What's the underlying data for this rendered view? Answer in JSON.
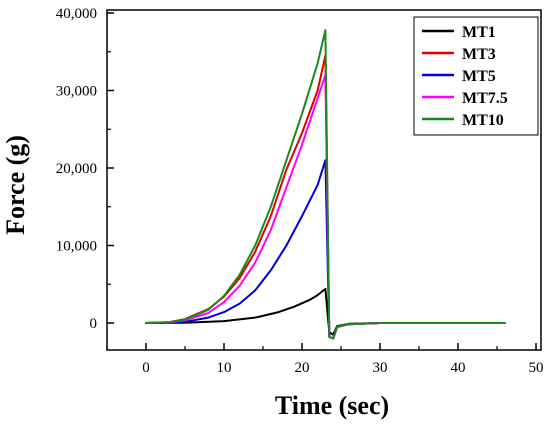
{
  "chart_data": {
    "type": "line",
    "title": "",
    "xlabel": "Time (sec)",
    "ylabel": "Force (g)",
    "xlim": [
      -5,
      50
    ],
    "ylim": [
      -3500,
      40000
    ],
    "x_ticks": [
      0,
      10,
      20,
      30,
      40,
      50
    ],
    "x_tick_labels": [
      "0",
      "10",
      "20",
      "30",
      "40",
      "50"
    ],
    "y_ticks": [
      0,
      10000,
      20000,
      30000,
      40000
    ],
    "y_tick_labels": [
      "0",
      "10,000",
      "20,000",
      "30,000",
      "40,000"
    ],
    "grid": false,
    "legend_position": "top-right",
    "series": [
      {
        "name": "MT1",
        "color": "#000000",
        "x": [
          0,
          5,
          10,
          14,
          17,
          19,
          21,
          22,
          23,
          23.5,
          24,
          24.5,
          26,
          30,
          46
        ],
        "y": [
          0,
          40,
          250,
          700,
          1400,
          2100,
          3000,
          3600,
          4400,
          -1200,
          -1500,
          -400,
          -100,
          0,
          0
        ]
      },
      {
        "name": "MT3",
        "color": "#e00000",
        "x": [
          0,
          3,
          5,
          8,
          10,
          12,
          14,
          16,
          18,
          20,
          22,
          23,
          23.5,
          24,
          24.5,
          26,
          30,
          46
        ],
        "y": [
          0,
          120,
          500,
          1800,
          3400,
          5800,
          9200,
          13800,
          19800,
          24500,
          30000,
          34500,
          -1800,
          -2000,
          -500,
          -150,
          0,
          0
        ]
      },
      {
        "name": "MT5",
        "color": "#0000d0",
        "x": [
          0,
          3,
          5,
          8,
          10,
          12,
          14,
          16,
          18,
          20,
          22,
          23,
          23.5,
          24,
          24.5,
          26,
          30,
          46
        ],
        "y": [
          0,
          40,
          150,
          700,
          1400,
          2500,
          4200,
          6800,
          10000,
          13800,
          17800,
          21000,
          -1800,
          -2000,
          -500,
          -150,
          0,
          0
        ]
      },
      {
        "name": "MT7.5",
        "color": "#ff00ff",
        "x": [
          0,
          3,
          5,
          8,
          10,
          12,
          14,
          16,
          18,
          20,
          22,
          23,
          23.5,
          24,
          24.5,
          26,
          30,
          46
        ],
        "y": [
          0,
          80,
          350,
          1300,
          2700,
          4800,
          7800,
          12000,
          17500,
          23000,
          29000,
          32000,
          -1800,
          -2000,
          -500,
          -150,
          0,
          0
        ]
      },
      {
        "name": "MT10",
        "color": "#1a8a1a",
        "x": [
          0,
          3,
          5,
          8,
          10,
          12,
          14,
          16,
          18,
          20,
          22,
          23,
          23.5,
          24,
          24.5,
          26,
          30,
          46
        ],
        "y": [
          0,
          100,
          450,
          1700,
          3500,
          6200,
          10000,
          15000,
          21000,
          27000,
          33500,
          37800,
          -1800,
          -2000,
          -500,
          -150,
          0,
          0
        ]
      }
    ]
  }
}
